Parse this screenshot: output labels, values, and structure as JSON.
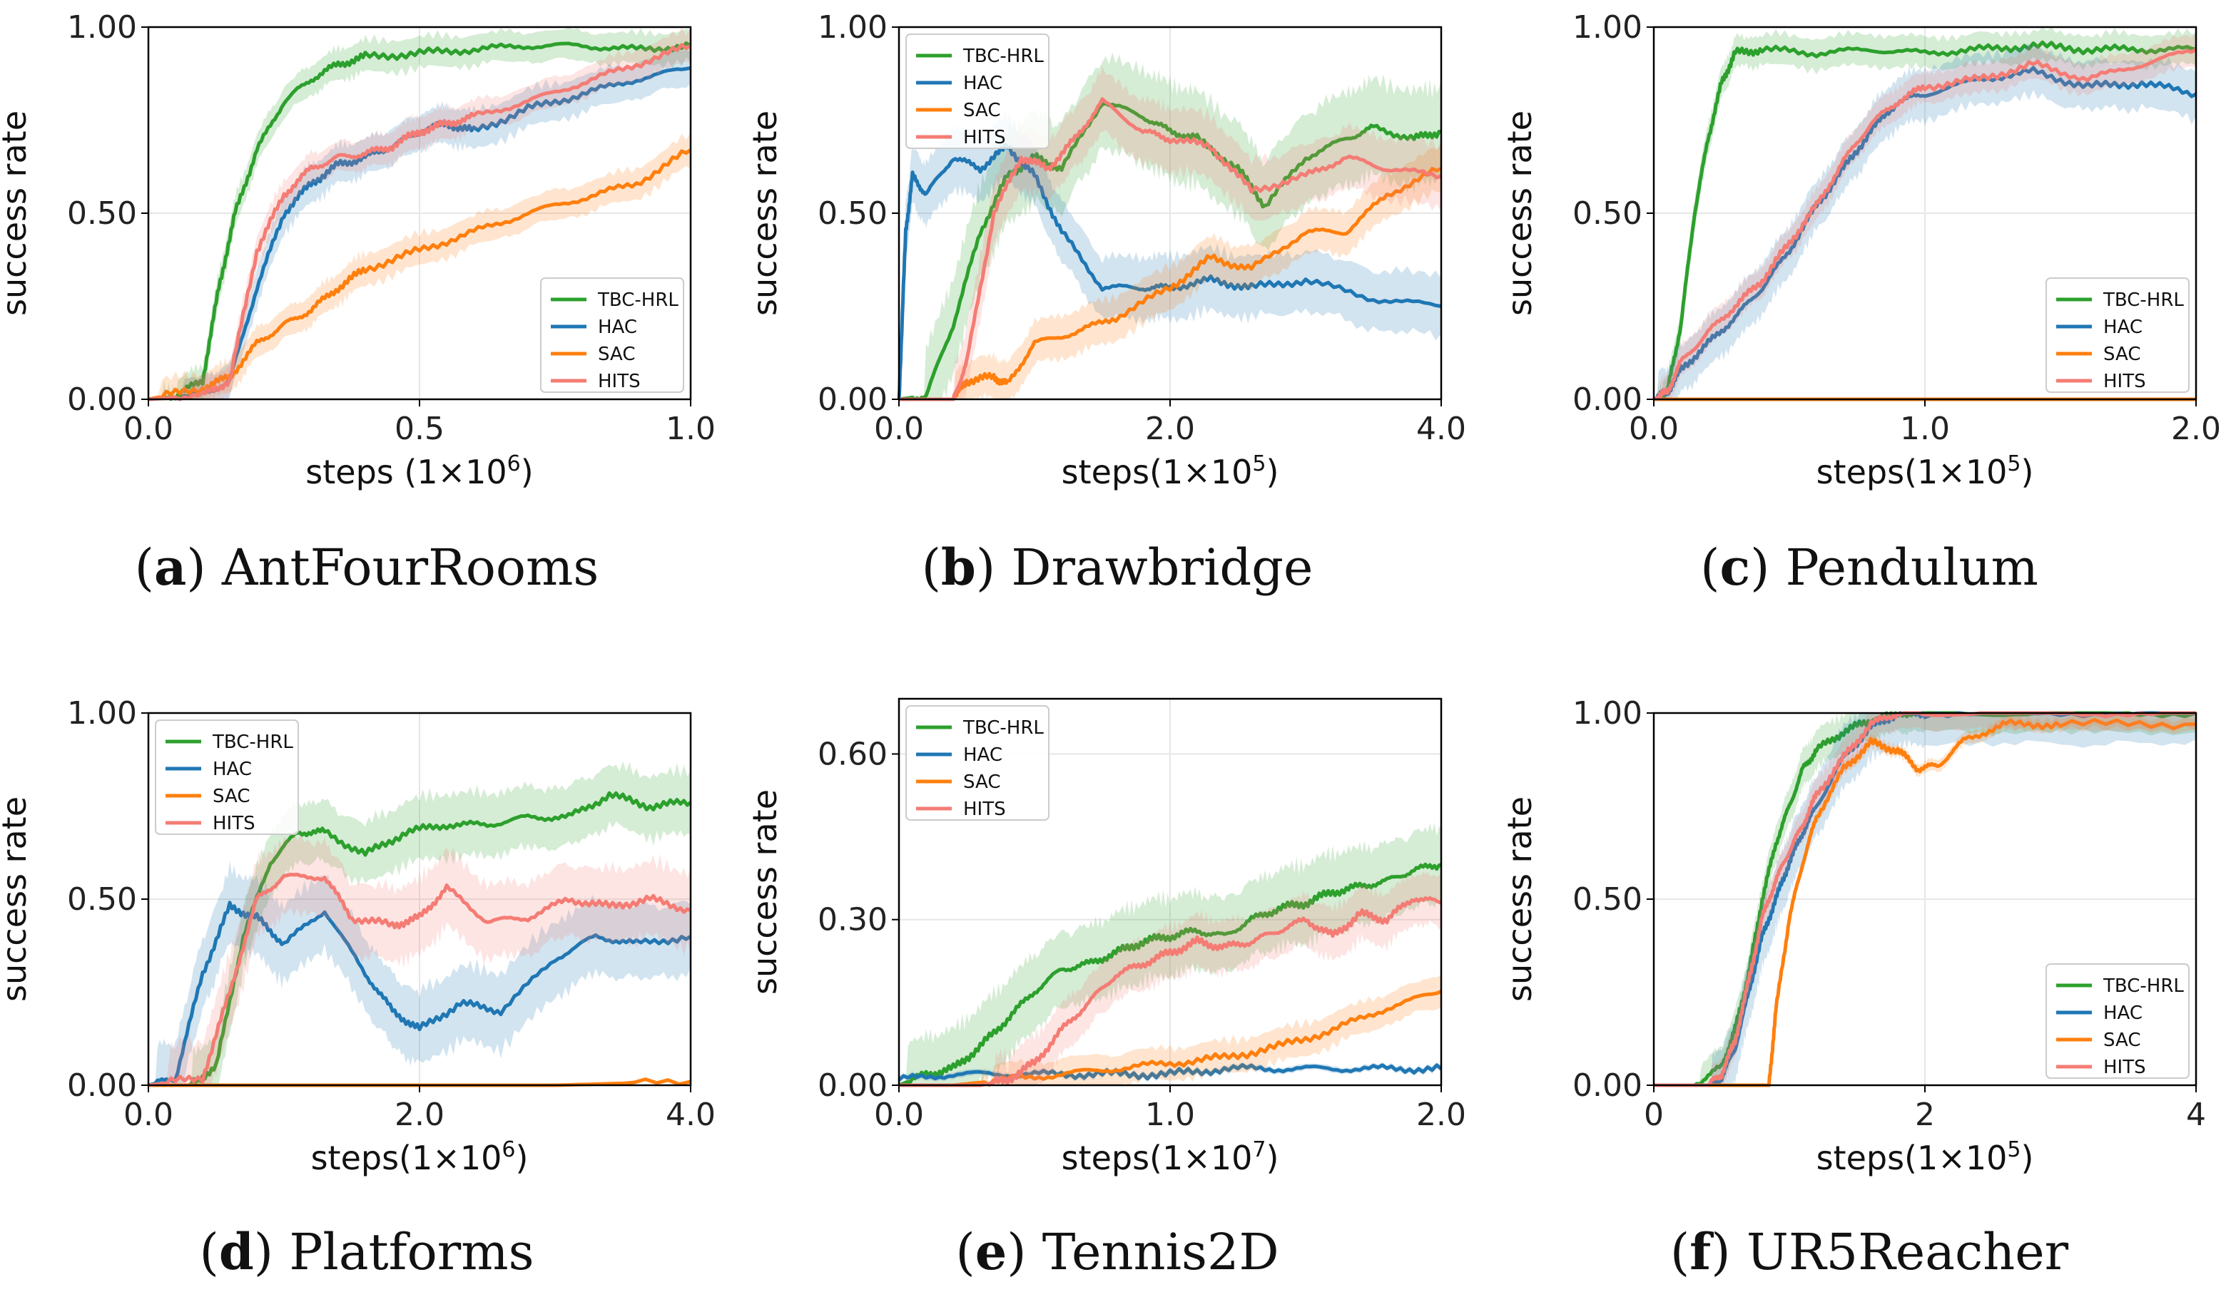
{
  "colors": {
    "TBC-HRL": "#2ca02c",
    "HAC": "#1f77b4",
    "SAC": "#ff7f0e",
    "HITS": "#f47c74"
  },
  "chart_data": [
    {
      "id": "a",
      "type": "line",
      "caption_letter": "a",
      "caption_name": "AntFourRooms",
      "ylabel": "success rate",
      "xlabel_prefix": "steps (1×10",
      "xlabel_exp": "6",
      "xlabel_suffix": ")",
      "xlim": [
        0,
        1.0
      ],
      "ylim": [
        0,
        1.0
      ],
      "xticks": [
        0.0,
        0.5,
        1.0
      ],
      "xtick_labels": [
        "0.0",
        "0.5",
        "1.0"
      ],
      "yticks": [
        0.0,
        0.5,
        1.0
      ],
      "ytick_labels": [
        "0.00",
        "0.50",
        "1.00"
      ],
      "legend_loc": "lower-right",
      "series": [
        {
          "name": "TBC-HRL",
          "x": [
            0,
            0.05,
            0.1,
            0.13,
            0.16,
            0.2,
            0.25,
            0.3,
            0.35,
            0.4,
            0.5,
            0.6,
            0.7,
            0.8,
            0.9,
            1.0
          ],
          "y": [
            0,
            0.01,
            0.05,
            0.3,
            0.5,
            0.67,
            0.8,
            0.86,
            0.9,
            0.92,
            0.93,
            0.94,
            0.95,
            0.95,
            0.94,
            0.95
          ],
          "band": 0.05
        },
        {
          "name": "HAC",
          "x": [
            0,
            0.1,
            0.15,
            0.2,
            0.25,
            0.3,
            0.35,
            0.4,
            0.45,
            0.5,
            0.55,
            0.6,
            0.7,
            0.8,
            0.9,
            1.0
          ],
          "y": [
            0,
            0.01,
            0.05,
            0.3,
            0.5,
            0.58,
            0.63,
            0.65,
            0.68,
            0.72,
            0.74,
            0.72,
            0.78,
            0.82,
            0.86,
            0.89
          ],
          "band": 0.06
        },
        {
          "name": "SAC",
          "x": [
            0,
            0.1,
            0.15,
            0.2,
            0.25,
            0.3,
            0.35,
            0.4,
            0.5,
            0.6,
            0.7,
            0.8,
            0.9,
            1.0
          ],
          "y": [
            0,
            0.03,
            0.06,
            0.15,
            0.2,
            0.24,
            0.3,
            0.35,
            0.4,
            0.45,
            0.5,
            0.54,
            0.58,
            0.67
          ],
          "band": 0.05
        },
        {
          "name": "HITS",
          "x": [
            0,
            0.1,
            0.15,
            0.2,
            0.25,
            0.3,
            0.35,
            0.4,
            0.45,
            0.5,
            0.55,
            0.6,
            0.7,
            0.8,
            0.9,
            1.0
          ],
          "y": [
            0,
            0.01,
            0.05,
            0.4,
            0.55,
            0.62,
            0.65,
            0.66,
            0.68,
            0.72,
            0.74,
            0.76,
            0.8,
            0.85,
            0.9,
            0.95
          ],
          "band": 0.05
        }
      ]
    },
    {
      "id": "b",
      "type": "line",
      "caption_letter": "b",
      "caption_name": "Drawbridge",
      "ylabel": "success rate",
      "xlabel_prefix": "steps(1×10",
      "xlabel_exp": "5",
      "xlabel_suffix": ")",
      "xlim": [
        0,
        4.0
      ],
      "ylim": [
        0,
        1.0
      ],
      "xticks": [
        0.0,
        2.0,
        4.0
      ],
      "xtick_labels": [
        "0.0",
        "2.0",
        "4.0"
      ],
      "yticks": [
        0.0,
        0.5,
        1.0
      ],
      "ytick_labels": [
        "0.00",
        "0.50",
        "1.00"
      ],
      "legend_loc": "upper-left",
      "series": [
        {
          "name": "TBC-HRL",
          "x": [
            0,
            0.2,
            0.4,
            0.6,
            0.8,
            1.0,
            1.2,
            1.5,
            1.8,
            2.0,
            2.2,
            2.5,
            2.7,
            3.0,
            3.3,
            3.5,
            3.8,
            4.0
          ],
          "y": [
            0,
            0.01,
            0.2,
            0.45,
            0.6,
            0.65,
            0.62,
            0.8,
            0.76,
            0.72,
            0.7,
            0.62,
            0.52,
            0.65,
            0.7,
            0.73,
            0.7,
            0.72
          ],
          "band": 0.15
        },
        {
          "name": "HAC",
          "x": [
            0,
            0.05,
            0.1,
            0.2,
            0.4,
            0.6,
            0.8,
            1.0,
            1.2,
            1.5,
            1.8,
            2.0,
            2.3,
            2.6,
            3.0,
            3.5,
            4.0
          ],
          "y": [
            0,
            0.45,
            0.6,
            0.55,
            0.65,
            0.62,
            0.68,
            0.6,
            0.45,
            0.3,
            0.3,
            0.3,
            0.32,
            0.3,
            0.32,
            0.27,
            0.25
          ],
          "band": 0.1
        },
        {
          "name": "SAC",
          "x": [
            0,
            0.4,
            0.5,
            0.7,
            0.8,
            1.0,
            1.3,
            1.6,
            2.0,
            2.3,
            2.6,
            3.0,
            3.3,
            3.6,
            4.0
          ],
          "y": [
            0,
            0.0,
            0.05,
            0.06,
            0.04,
            0.15,
            0.18,
            0.22,
            0.3,
            0.38,
            0.35,
            0.45,
            0.45,
            0.55,
            0.62
          ],
          "band": 0.07
        },
        {
          "name": "HITS",
          "x": [
            0,
            0.4,
            0.5,
            0.7,
            0.9,
            1.1,
            1.3,
            1.5,
            1.8,
            2.0,
            2.3,
            2.6,
            3.0,
            3.3,
            3.6,
            4.0
          ],
          "y": [
            0,
            0.0,
            0.1,
            0.5,
            0.65,
            0.62,
            0.7,
            0.8,
            0.72,
            0.7,
            0.68,
            0.56,
            0.6,
            0.65,
            0.62,
            0.6
          ],
          "band": 0.1
        }
      ]
    },
    {
      "id": "c",
      "type": "line",
      "caption_letter": "c",
      "caption_name": "Pendulum",
      "ylabel": "success rate",
      "xlabel_prefix": "steps(1×10",
      "xlabel_exp": "5",
      "xlabel_suffix": ")",
      "xlim": [
        0,
        2.0
      ],
      "ylim": [
        0,
        1.0
      ],
      "xticks": [
        0.0,
        1.0,
        2.0
      ],
      "xtick_labels": [
        "0.0",
        "1.0",
        "2.0"
      ],
      "yticks": [
        0.0,
        0.5,
        1.0
      ],
      "ytick_labels": [
        "0.00",
        "0.50",
        "1.00"
      ],
      "legend_loc": "lower-right",
      "series": [
        {
          "name": "TBC-HRL",
          "x": [
            0,
            0.05,
            0.1,
            0.15,
            0.2,
            0.25,
            0.3,
            0.4,
            0.6,
            0.8,
            1.0,
            1.2,
            1.4,
            1.6,
            1.8,
            2.0
          ],
          "y": [
            0,
            0.02,
            0.2,
            0.5,
            0.7,
            0.85,
            0.93,
            0.94,
            0.93,
            0.94,
            0.93,
            0.94,
            0.95,
            0.94,
            0.94,
            0.94
          ],
          "band": 0.05
        },
        {
          "name": "HAC",
          "x": [
            0,
            0.05,
            0.1,
            0.2,
            0.3,
            0.4,
            0.5,
            0.6,
            0.7,
            0.8,
            0.9,
            1.0,
            1.2,
            1.4,
            1.6,
            1.8,
            2.0
          ],
          "y": [
            0,
            0.02,
            0.08,
            0.15,
            0.22,
            0.3,
            0.4,
            0.52,
            0.62,
            0.72,
            0.8,
            0.82,
            0.86,
            0.88,
            0.84,
            0.85,
            0.82
          ],
          "band": 0.08
        },
        {
          "name": "SAC",
          "x": [
            0,
            0.5,
            1.0,
            1.5,
            2.0
          ],
          "y": [
            0,
            0.0,
            0.0,
            0.0,
            0.0
          ],
          "band": 0.005
        },
        {
          "name": "HITS",
          "x": [
            0,
            0.05,
            0.1,
            0.2,
            0.3,
            0.4,
            0.5,
            0.6,
            0.7,
            0.8,
            0.9,
            1.0,
            1.2,
            1.4,
            1.6,
            1.8,
            2.0
          ],
          "y": [
            0,
            0.02,
            0.1,
            0.18,
            0.25,
            0.32,
            0.42,
            0.52,
            0.64,
            0.74,
            0.8,
            0.84,
            0.86,
            0.9,
            0.86,
            0.9,
            0.94
          ],
          "band": 0.05
        }
      ]
    },
    {
      "id": "d",
      "type": "line",
      "caption_letter": "d",
      "caption_name": "Platforms",
      "ylabel": "success rate",
      "xlabel_prefix": "steps(1×10",
      "xlabel_exp": "6",
      "xlabel_suffix": ")",
      "xlim": [
        0,
        4.0
      ],
      "ylim": [
        0,
        1.0
      ],
      "xticks": [
        0.0,
        2.0,
        4.0
      ],
      "xtick_labels": [
        "0.0",
        "2.0",
        "4.0"
      ],
      "yticks": [
        0.0,
        0.5,
        1.0
      ],
      "ytick_labels": [
        "0.00",
        "0.50",
        "1.00"
      ],
      "legend_loc": "upper-left",
      "series": [
        {
          "name": "TBC-HRL",
          "x": [
            0,
            0.3,
            0.5,
            0.7,
            0.9,
            1.1,
            1.3,
            1.6,
            1.9,
            2.2,
            2.5,
            2.8,
            3.1,
            3.4,
            3.7,
            4.0
          ],
          "y": [
            0,
            0.0,
            0.05,
            0.4,
            0.6,
            0.68,
            0.68,
            0.62,
            0.68,
            0.7,
            0.7,
            0.72,
            0.72,
            0.78,
            0.75,
            0.76
          ],
          "band": 0.1
        },
        {
          "name": "HAC",
          "x": [
            0,
            0.2,
            0.4,
            0.6,
            0.8,
            1.0,
            1.3,
            1.6,
            1.8,
            2.0,
            2.3,
            2.6,
            3.0,
            3.3,
            3.6,
            4.0
          ],
          "y": [
            0,
            0.02,
            0.3,
            0.48,
            0.45,
            0.38,
            0.47,
            0.3,
            0.2,
            0.15,
            0.22,
            0.2,
            0.34,
            0.4,
            0.38,
            0.4
          ],
          "band": 0.12
        },
        {
          "name": "SAC",
          "x": [
            0,
            1.0,
            2.0,
            3.0,
            4.0
          ],
          "y": [
            0,
            0.0,
            0.0,
            0.0,
            0.01
          ],
          "band": 0.005
        },
        {
          "name": "HITS",
          "x": [
            0,
            0.4,
            0.6,
            0.8,
            1.0,
            1.3,
            1.5,
            1.8,
            2.0,
            2.2,
            2.5,
            2.8,
            3.1,
            3.4,
            3.7,
            4.0
          ],
          "y": [
            0,
            0.02,
            0.25,
            0.5,
            0.56,
            0.56,
            0.45,
            0.43,
            0.45,
            0.53,
            0.44,
            0.45,
            0.5,
            0.48,
            0.5,
            0.47
          ],
          "band": 0.12
        }
      ]
    },
    {
      "id": "e",
      "type": "line",
      "caption_letter": "e",
      "caption_name": "Tennis2D",
      "ylabel": "success rate",
      "xlabel_prefix": "steps(1×10",
      "xlabel_exp": "7",
      "xlabel_suffix": ")",
      "xlim": [
        0,
        2.0
      ],
      "ylim": [
        0,
        0.7
      ],
      "xticks": [
        0.0,
        1.0,
        2.0
      ],
      "xtick_labels": [
        "0.0",
        "1.0",
        "2.0"
      ],
      "yticks": [
        0.0,
        0.3,
        0.6
      ],
      "ytick_labels": [
        "0.00",
        "0.30",
        "0.60"
      ],
      "legend_loc": "upper-left",
      "series": [
        {
          "name": "TBC-HRL",
          "x": [
            0,
            0.1,
            0.2,
            0.3,
            0.4,
            0.5,
            0.6,
            0.7,
            0.8,
            0.9,
            1.0,
            1.1,
            1.2,
            1.3,
            1.4,
            1.5,
            1.6,
            1.7,
            1.8,
            1.9,
            2.0
          ],
          "y": [
            0,
            0.02,
            0.03,
            0.07,
            0.12,
            0.17,
            0.21,
            0.22,
            0.24,
            0.26,
            0.27,
            0.28,
            0.27,
            0.3,
            0.32,
            0.33,
            0.35,
            0.36,
            0.37,
            0.39,
            0.4
          ],
          "band": 0.12
        },
        {
          "name": "HAC",
          "x": [
            0,
            0.2,
            0.4,
            0.6,
            0.8,
            1.0,
            1.2,
            1.4,
            1.6,
            1.8,
            2.0
          ],
          "y": [
            0.01,
            0.02,
            0.02,
            0.02,
            0.02,
            0.02,
            0.03,
            0.03,
            0.03,
            0.03,
            0.03
          ],
          "band": 0.01
        },
        {
          "name": "SAC",
          "x": [
            0,
            0.2,
            0.4,
            0.6,
            0.8,
            1.0,
            1.2,
            1.4,
            1.6,
            1.8,
            2.0
          ],
          "y": [
            0,
            0.0,
            0.01,
            0.02,
            0.03,
            0.04,
            0.05,
            0.07,
            0.1,
            0.14,
            0.17
          ],
          "band": 0.05
        },
        {
          "name": "HITS",
          "x": [
            0,
            0.3,
            0.4,
            0.5,
            0.6,
            0.7,
            0.8,
            0.9,
            1.0,
            1.1,
            1.2,
            1.3,
            1.4,
            1.5,
            1.6,
            1.7,
            1.8,
            1.9,
            2.0
          ],
          "y": [
            0,
            0.0,
            0.01,
            0.04,
            0.1,
            0.15,
            0.2,
            0.22,
            0.24,
            0.26,
            0.25,
            0.26,
            0.28,
            0.3,
            0.27,
            0.31,
            0.3,
            0.34,
            0.33
          ],
          "band": 0.08
        }
      ]
    },
    {
      "id": "f",
      "type": "line",
      "caption_letter": "f",
      "caption_name": "UR5Reacher",
      "ylabel": "success rate",
      "xlabel_prefix": "steps(1×10",
      "xlabel_exp": "5",
      "xlabel_suffix": ")",
      "xlim": [
        0,
        4
      ],
      "ylim": [
        0,
        1.0
      ],
      "xticks": [
        0,
        2,
        4
      ],
      "xtick_labels": [
        "0",
        "2",
        "4"
      ],
      "yticks": [
        0.0,
        0.5,
        1.0
      ],
      "ytick_labels": [
        "0.00",
        "0.50",
        "1.00"
      ],
      "legend_loc": "lower-right",
      "series": [
        {
          "name": "TBC-HRL",
          "x": [
            0,
            0.3,
            0.5,
            0.6,
            0.7,
            0.8,
            0.9,
            1.0,
            1.1,
            1.2,
            1.4,
            1.6,
            1.8,
            2.0,
            3.0,
            4.0
          ],
          "y": [
            0,
            0.0,
            0.05,
            0.15,
            0.3,
            0.5,
            0.65,
            0.75,
            0.85,
            0.9,
            0.95,
            0.98,
            1.0,
            1.0,
            1.0,
            1.0
          ],
          "band": 0.06
        },
        {
          "name": "HAC",
          "x": [
            0,
            0.4,
            0.5,
            0.6,
            0.7,
            0.8,
            0.9,
            1.0,
            1.1,
            1.2,
            1.4,
            1.6,
            1.8,
            2.0,
            3.0,
            4.0
          ],
          "y": [
            0,
            0.0,
            0.02,
            0.1,
            0.25,
            0.4,
            0.5,
            0.6,
            0.68,
            0.75,
            0.88,
            0.96,
            1.0,
            1.0,
            1.0,
            1.0
          ],
          "band": 0.1
        },
        {
          "name": "SAC",
          "x": [
            0,
            0.8,
            0.85,
            0.9,
            1.0,
            1.1,
            1.2,
            1.4,
            1.6,
            1.8,
            1.95,
            2.1,
            2.3,
            2.6,
            3.0,
            4.0
          ],
          "y": [
            0,
            0.0,
            0.0,
            0.2,
            0.45,
            0.6,
            0.72,
            0.85,
            0.92,
            0.9,
            0.85,
            0.86,
            0.93,
            0.97,
            0.97,
            0.97
          ],
          "band": 0.02
        },
        {
          "name": "HITS",
          "x": [
            0,
            0.4,
            0.5,
            0.6,
            0.7,
            0.8,
            0.9,
            1.0,
            1.1,
            1.2,
            1.4,
            1.6,
            1.8,
            2.0,
            3.0,
            4.0
          ],
          "y": [
            0,
            0.0,
            0.03,
            0.12,
            0.28,
            0.45,
            0.55,
            0.63,
            0.7,
            0.78,
            0.88,
            0.97,
            1.0,
            1.0,
            1.0,
            1.0
          ],
          "band": 0.05
        }
      ]
    }
  ]
}
